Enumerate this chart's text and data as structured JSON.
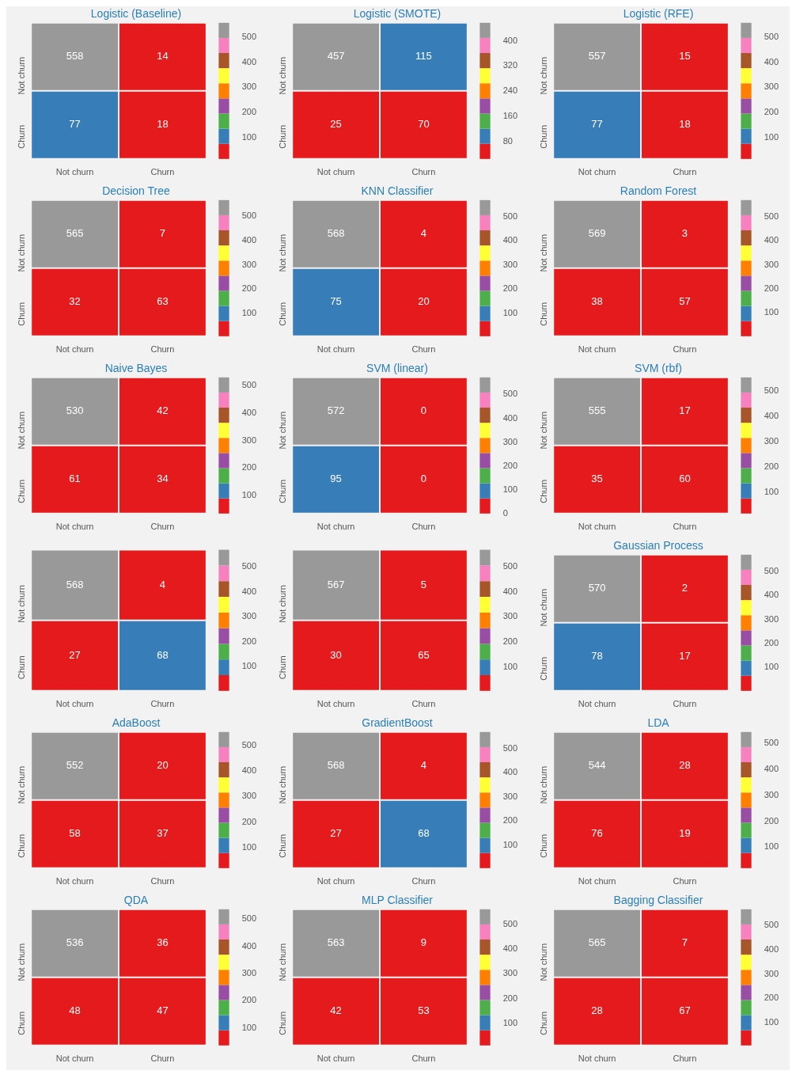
{
  "chart_data": [
    {
      "type": "heatmap",
      "title": "Logistic (Baseline)",
      "categories": [
        "Not churn",
        "Churn"
      ],
      "y_categories": [
        "Not churn",
        "Churn"
      ],
      "cells": [
        [
          558,
          14
        ],
        [
          77,
          18
        ]
      ],
      "clim": [
        14,
        558
      ],
      "cticks": [
        100,
        200,
        300,
        400,
        500
      ],
      "colors": [
        "#e41a1c",
        "#377eb8",
        "#4daf4a",
        "#984ea3",
        "#ff7f00",
        "#ffff33",
        "#a65628",
        "#f781bf",
        "#999999"
      ],
      "data_labels": true
    },
    {
      "type": "heatmap",
      "title": "Logistic (SMOTE)",
      "categories": [
        "Not churn",
        "Churn"
      ],
      "y_categories": [
        "Not churn",
        "Churn"
      ],
      "cells": [
        [
          457,
          115
        ],
        [
          25,
          70
        ]
      ],
      "clim": [
        25,
        457
      ],
      "cticks": [
        80,
        160,
        240,
        320,
        400
      ],
      "colors": [
        "#e41a1c",
        "#377eb8",
        "#4daf4a",
        "#984ea3",
        "#ff7f00",
        "#ffff33",
        "#a65628",
        "#f781bf",
        "#999999"
      ],
      "data_labels": true
    },
    {
      "type": "heatmap",
      "title": "Logistic (RFE)",
      "categories": [
        "Not churn",
        "Churn"
      ],
      "y_categories": [
        "Not churn",
        "Churn"
      ],
      "cells": [
        [
          557,
          15
        ],
        [
          77,
          18
        ]
      ],
      "clim": [
        15,
        557
      ],
      "cticks": [
        100,
        200,
        300,
        400,
        500
      ],
      "colors": [
        "#e41a1c",
        "#377eb8",
        "#4daf4a",
        "#984ea3",
        "#ff7f00",
        "#ffff33",
        "#a65628",
        "#f781bf",
        "#999999"
      ],
      "data_labels": true
    },
    {
      "type": "heatmap",
      "title": "Decision Tree",
      "categories": [
        "Not churn",
        "Churn"
      ],
      "y_categories": [
        "Not churn",
        "Churn"
      ],
      "cells": [
        [
          565,
          7
        ],
        [
          32,
          63
        ]
      ],
      "clim": [
        7,
        565
      ],
      "cticks": [
        100,
        200,
        300,
        400,
        500
      ],
      "colors": [
        "#e41a1c",
        "#377eb8",
        "#4daf4a",
        "#984ea3",
        "#ff7f00",
        "#ffff33",
        "#a65628",
        "#f781bf",
        "#999999"
      ],
      "data_labels": true
    },
    {
      "type": "heatmap",
      "title": "KNN Classifier",
      "categories": [
        "Not churn",
        "Churn"
      ],
      "y_categories": [
        "Not churn",
        "Churn"
      ],
      "cells": [
        [
          568,
          4
        ],
        [
          75,
          20
        ]
      ],
      "clim": [
        4,
        568
      ],
      "cticks": [
        100,
        200,
        300,
        400,
        500
      ],
      "colors": [
        "#e41a1c",
        "#377eb8",
        "#4daf4a",
        "#984ea3",
        "#ff7f00",
        "#ffff33",
        "#a65628",
        "#f781bf",
        "#999999"
      ],
      "data_labels": true
    },
    {
      "type": "heatmap",
      "title": "Random Forest",
      "categories": [
        "Not churn",
        "Churn"
      ],
      "y_categories": [
        "Not churn",
        "Churn"
      ],
      "cells": [
        [
          569,
          3
        ],
        [
          38,
          57
        ]
      ],
      "clim": [
        3,
        569
      ],
      "cticks": [
        100,
        200,
        300,
        400,
        500
      ],
      "colors": [
        "#e41a1c",
        "#377eb8",
        "#4daf4a",
        "#984ea3",
        "#ff7f00",
        "#ffff33",
        "#a65628",
        "#f781bf",
        "#999999"
      ],
      "data_labels": true
    },
    {
      "type": "heatmap",
      "title": "Naive Bayes",
      "categories": [
        "Not churn",
        "Churn"
      ],
      "y_categories": [
        "Not churn",
        "Churn"
      ],
      "cells": [
        [
          530,
          42
        ],
        [
          61,
          34
        ]
      ],
      "clim": [
        34,
        530
      ],
      "cticks": [
        100,
        200,
        300,
        400,
        500
      ],
      "colors": [
        "#e41a1c",
        "#377eb8",
        "#4daf4a",
        "#984ea3",
        "#ff7f00",
        "#ffff33",
        "#a65628",
        "#f781bf",
        "#999999"
      ],
      "data_labels": true
    },
    {
      "type": "heatmap",
      "title": "SVM (linear)",
      "categories": [
        "Not churn",
        "Churn"
      ],
      "y_categories": [
        "Not churn",
        "Churn"
      ],
      "cells": [
        [
          572,
          0
        ],
        [
          95,
          0
        ]
      ],
      "clim": [
        0,
        572
      ],
      "cticks": [
        0,
        100,
        200,
        300,
        400,
        500
      ],
      "colors": [
        "#e41a1c",
        "#377eb8",
        "#4daf4a",
        "#984ea3",
        "#ff7f00",
        "#ffff33",
        "#a65628",
        "#f781bf",
        "#999999"
      ],
      "data_labels": true
    },
    {
      "type": "heatmap",
      "title": "SVM (rbf)",
      "categories": [
        "Not churn",
        "Churn"
      ],
      "y_categories": [
        "Not churn",
        "Churn"
      ],
      "cells": [
        [
          555,
          17
        ],
        [
          35,
          60
        ]
      ],
      "clim": [
        17,
        555
      ],
      "cticks": [
        100,
        200,
        300,
        400,
        500
      ],
      "colors": [
        "#e41a1c",
        "#377eb8",
        "#4daf4a",
        "#984ea3",
        "#ff7f00",
        "#ffff33",
        "#a65628",
        "#f781bf",
        "#999999"
      ],
      "data_labels": true
    },
    {
      "type": "heatmap",
      "categories": [
        "Not churn",
        "Churn"
      ],
      "y_categories": [
        "Not churn",
        "Churn"
      ],
      "cells": [
        [
          568,
          4
        ],
        [
          27,
          68
        ]
      ],
      "clim": [
        4,
        568
      ],
      "cticks": [
        100,
        200,
        300,
        400,
        500
      ],
      "colors": [
        "#e41a1c",
        "#377eb8",
        "#4daf4a",
        "#984ea3",
        "#ff7f00",
        "#ffff33",
        "#a65628",
        "#f781bf",
        "#999999"
      ],
      "data_labels": true
    },
    {
      "type": "heatmap",
      "categories": [
        "Not churn",
        "Churn"
      ],
      "y_categories": [
        "Not churn",
        "Churn"
      ],
      "cells": [
        [
          567,
          5
        ],
        [
          30,
          65
        ]
      ],
      "clim": [
        5,
        567
      ],
      "cticks": [
        100,
        200,
        300,
        400,
        500
      ],
      "colors": [
        "#e41a1c",
        "#377eb8",
        "#4daf4a",
        "#984ea3",
        "#ff7f00",
        "#ffff33",
        "#a65628",
        "#f781bf",
        "#999999"
      ],
      "data_labels": true
    },
    {
      "type": "heatmap",
      "title": "Gaussian Process",
      "categories": [
        "Not churn",
        "Churn"
      ],
      "y_categories": [
        "Not churn",
        "Churn"
      ],
      "cells": [
        [
          570,
          2
        ],
        [
          78,
          17
        ]
      ],
      "clim": [
        2,
        570
      ],
      "cticks": [
        100,
        200,
        300,
        400,
        500
      ],
      "colors": [
        "#e41a1c",
        "#377eb8",
        "#4daf4a",
        "#984ea3",
        "#ff7f00",
        "#ffff33",
        "#a65628",
        "#f781bf",
        "#999999"
      ],
      "data_labels": true
    },
    {
      "type": "heatmap",
      "title": "AdaBoost",
      "categories": [
        "Not churn",
        "Churn"
      ],
      "y_categories": [
        "Not churn",
        "Churn"
      ],
      "cells": [
        [
          552,
          20
        ],
        [
          58,
          37
        ]
      ],
      "clim": [
        20,
        552
      ],
      "cticks": [
        100,
        200,
        300,
        400,
        500
      ],
      "colors": [
        "#e41a1c",
        "#377eb8",
        "#4daf4a",
        "#984ea3",
        "#ff7f00",
        "#ffff33",
        "#a65628",
        "#f781bf",
        "#999999"
      ],
      "data_labels": true
    },
    {
      "type": "heatmap",
      "title": "GradientBoost",
      "categories": [
        "Not churn",
        "Churn"
      ],
      "y_categories": [
        "Not churn",
        "Churn"
      ],
      "cells": [
        [
          568,
          4
        ],
        [
          27,
          68
        ]
      ],
      "clim": [
        4,
        568
      ],
      "cticks": [
        100,
        200,
        300,
        400,
        500
      ],
      "colors": [
        "#e41a1c",
        "#377eb8",
        "#4daf4a",
        "#984ea3",
        "#ff7f00",
        "#ffff33",
        "#a65628",
        "#f781bf",
        "#999999"
      ],
      "data_labels": true
    },
    {
      "type": "heatmap",
      "title": "LDA",
      "categories": [
        "Not churn",
        "Churn"
      ],
      "y_categories": [
        "Not churn",
        "Churn"
      ],
      "cells": [
        [
          544,
          28
        ],
        [
          76,
          19
        ]
      ],
      "clim": [
        19,
        544
      ],
      "cticks": [
        100,
        200,
        300,
        400,
        500
      ],
      "colors": [
        "#e41a1c",
        "#377eb8",
        "#4daf4a",
        "#984ea3",
        "#ff7f00",
        "#ffff33",
        "#a65628",
        "#f781bf",
        "#999999"
      ],
      "data_labels": true
    },
    {
      "type": "heatmap",
      "title": "QDA",
      "categories": [
        "Not churn",
        "Churn"
      ],
      "y_categories": [
        "Not churn",
        "Churn"
      ],
      "cells": [
        [
          536,
          36
        ],
        [
          48,
          47
        ]
      ],
      "clim": [
        36,
        536
      ],
      "cticks": [
        100,
        200,
        300,
        400,
        500
      ],
      "colors": [
        "#e41a1c",
        "#377eb8",
        "#4daf4a",
        "#984ea3",
        "#ff7f00",
        "#ffff33",
        "#a65628",
        "#f781bf",
        "#999999"
      ],
      "data_labels": true
    },
    {
      "type": "heatmap",
      "title": "MLP Classifier",
      "categories": [
        "Not churn",
        "Churn"
      ],
      "y_categories": [
        "Not churn",
        "Churn"
      ],
      "cells": [
        [
          563,
          9
        ],
        [
          42,
          53
        ]
      ],
      "clim": [
        9,
        563
      ],
      "cticks": [
        100,
        200,
        300,
        400,
        500
      ],
      "colors": [
        "#e41a1c",
        "#377eb8",
        "#4daf4a",
        "#984ea3",
        "#ff7f00",
        "#ffff33",
        "#a65628",
        "#f781bf",
        "#999999"
      ],
      "data_labels": true
    },
    {
      "type": "heatmap",
      "title": "Bagging Classifier",
      "categories": [
        "Not churn",
        "Churn"
      ],
      "y_categories": [
        "Not churn",
        "Churn"
      ],
      "cells": [
        [
          565,
          7
        ],
        [
          28,
          67
        ]
      ],
      "clim": [
        7,
        565
      ],
      "cticks": [
        100,
        200,
        300,
        400,
        500
      ],
      "colors": [
        "#e41a1c",
        "#377eb8",
        "#4daf4a",
        "#984ea3",
        "#ff7f00",
        "#ffff33",
        "#a65628",
        "#f781bf",
        "#999999"
      ],
      "data_labels": true
    }
  ]
}
